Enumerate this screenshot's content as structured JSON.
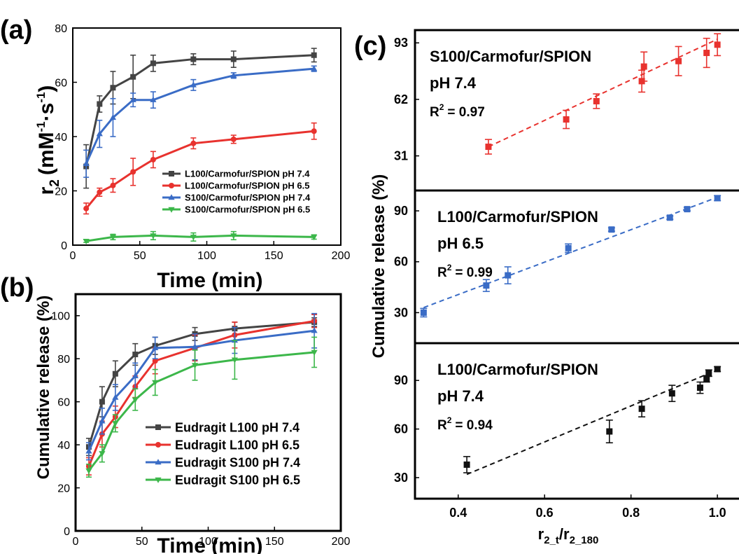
{
  "figure": {
    "panel_labels": [
      "(a)",
      "(b)",
      "(c)"
    ]
  },
  "chart_data": [
    {
      "type": "line",
      "panel": "(a)",
      "ylabel_main": "r",
      "ylabel_sub": "2",
      "ylabel_unit": "(mM",
      "ylabel_sup1": "-1",
      "ylabel_dot": "·s",
      "ylabel_sup2": "-1",
      "ylabel_close": ")",
      "xlabel": "Time (min)",
      "xlim": [
        0,
        200
      ],
      "ylim": [
        0,
        80
      ],
      "xticks": [
        "0",
        "50",
        "100",
        "150",
        "200"
      ],
      "yticks": [
        "0",
        "20",
        "40",
        "60",
        "80"
      ],
      "legend_position": "bottom-right",
      "series": [
        {
          "name": "L100/Carmofur/SPION pH 7.4",
          "color": "#444444",
          "marker": "square",
          "x": [
            10,
            20,
            30,
            45,
            60,
            90,
            120,
            180
          ],
          "y": [
            29,
            52,
            58,
            62,
            67,
            68.5,
            68.5,
            70
          ],
          "err": [
            8,
            3,
            6,
            8,
            3,
            2,
            3,
            2.5
          ]
        },
        {
          "name": "L100/Carmofur/SPION pH 6.5",
          "color": "#e8322e",
          "marker": "circle",
          "x": [
            10,
            20,
            30,
            45,
            60,
            90,
            120,
            180
          ],
          "y": [
            13.5,
            19.5,
            22,
            27,
            31.5,
            37.5,
            39,
            42
          ],
          "err": [
            2,
            1.5,
            2.5,
            5,
            3,
            2,
            1.5,
            3
          ]
        },
        {
          "name": "S100/Carmofur/SPION pH 7.4",
          "color": "#3a6cc6",
          "marker": "triangle-up",
          "x": [
            10,
            20,
            30,
            45,
            60,
            90,
            120,
            180
          ],
          "y": [
            30,
            41,
            47,
            53.5,
            53.5,
            59,
            62.5,
            65
          ],
          "err": [
            5,
            5,
            7,
            2.5,
            3,
            2,
            1,
            1
          ]
        },
        {
          "name": "S100/Carmofur/SPION pH 6.5",
          "color": "#3cb74a",
          "marker": "triangle-down",
          "x": [
            10,
            30,
            60,
            90,
            120,
            180
          ],
          "y": [
            1.5,
            3,
            3.5,
            3,
            3.5,
            3
          ],
          "err": [
            0.5,
            1,
            1.5,
            1.5,
            1.5,
            0.8
          ]
        }
      ]
    },
    {
      "type": "line",
      "panel": "(b)",
      "ylabel": "Cumulative release (%)",
      "xlabel": "Time (min)",
      "xlim": [
        0,
        200
      ],
      "ylim": [
        0,
        110
      ],
      "xticks": [
        "0",
        "50",
        "100",
        "150",
        "200"
      ],
      "yticks": [
        "0",
        "20",
        "40",
        "60",
        "80",
        "100"
      ],
      "legend_position": "bottom-right",
      "series": [
        {
          "name": "Eudragit L100 pH 7.4",
          "color": "#444444",
          "marker": "square",
          "x": [
            10,
            20,
            30,
            45,
            60,
            90,
            120,
            180
          ],
          "y": [
            39,
            60,
            73,
            82,
            86,
            91.5,
            94,
            97
          ],
          "err": [
            4,
            7,
            6,
            5,
            4,
            3,
            3,
            2
          ]
        },
        {
          "name": "Eudragit L100 pH 6.5",
          "color": "#e8322e",
          "marker": "circle",
          "x": [
            10,
            20,
            30,
            45,
            60,
            90,
            120,
            180
          ],
          "y": [
            30,
            45,
            53,
            67,
            79,
            85,
            91,
            97.5
          ],
          "err": [
            4,
            6,
            5,
            5,
            6,
            6,
            6,
            3
          ]
        },
        {
          "name": "Eudragit S100 pH 7.4",
          "color": "#3a6cc6",
          "marker": "triangle-up",
          "x": [
            10,
            20,
            30,
            45,
            60,
            90,
            120,
            180
          ],
          "y": [
            37,
            51,
            62,
            72,
            85,
            85.5,
            88.5,
            93
          ],
          "err": [
            4,
            6,
            6,
            6,
            5,
            6,
            6,
            8
          ]
        },
        {
          "name": "Eudragit S100 pH 6.5",
          "color": "#3cb74a",
          "marker": "triangle-down",
          "x": [
            10,
            20,
            30,
            45,
            60,
            90,
            120,
            180
          ],
          "y": [
            28,
            36,
            50,
            61,
            69,
            77,
            79.5,
            83
          ],
          "err": [
            3,
            4,
            4,
            5,
            6,
            7,
            9,
            7
          ]
        }
      ]
    },
    {
      "type": "scatter",
      "panel": "(c)",
      "ylabel": "Cumulative release (%)",
      "xlabel_main": "r",
      "xlabel_sub1": "2_t",
      "xlabel_slash": "/r",
      "xlabel_sub2": "2_180",
      "xlim": [
        0.3,
        1.05
      ],
      "xticks": [
        "0.4",
        "0.6",
        "0.8",
        "1.0"
      ],
      "subplots": [
        {
          "label_line1": "S100/Carmofur/SPION",
          "label_line2": "pH 7.4",
          "r2_prefix": "R",
          "r2_sup": "2",
          "r2_value": "= 0.97",
          "color": "#e8322e",
          "ylim": [
            12,
            100
          ],
          "yticks": [
            "31",
            "62",
            "93"
          ],
          "x": [
            0.47,
            0.65,
            0.72,
            0.825,
            0.83,
            0.91,
            0.975,
            1.0
          ],
          "y": [
            36,
            51,
            61,
            72,
            80,
            83,
            87.5,
            92
          ],
          "err": [
            4,
            5,
            4,
            6,
            8,
            8,
            8,
            6
          ],
          "fit": [
            [
              0.47,
              36
            ],
            [
              1.0,
              95
            ]
          ]
        },
        {
          "label_line1": "L100/Carmofur/SPION",
          "label_line2": "pH 6.5",
          "r2_prefix": "R",
          "r2_sup": "2",
          "r2_value": "= 0.99",
          "color": "#3a6cc6",
          "ylim": [
            12,
            102
          ],
          "yticks": [
            "30",
            "60",
            "90"
          ],
          "x": [
            0.32,
            0.465,
            0.515,
            0.655,
            0.755,
            0.89,
            0.93,
            1.0
          ],
          "y": [
            30,
            46,
            52,
            68,
            79,
            86,
            91,
            97.5
          ],
          "err": [
            2.5,
            3.5,
            5,
            2.5,
            1,
            1,
            1,
            1.5
          ],
          "fit": [
            [
              0.32,
              33
            ],
            [
              1.0,
              98
            ]
          ]
        },
        {
          "label_line1": "L100/Carmofur/SPION",
          "label_line2": "pH 7.4",
          "r2_prefix": "R",
          "r2_sup": "2",
          "r2_value": "= 0.94",
          "color": "#111111",
          "ylim": [
            17,
            113
          ],
          "yticks": [
            "30",
            "60",
            "90"
          ],
          "x": [
            0.42,
            0.75,
            0.825,
            0.895,
            0.96,
            0.975,
            0.98,
            1.0
          ],
          "y": [
            38,
            58.5,
            72.5,
            82,
            85.5,
            91,
            94.5,
            97
          ],
          "err": [
            5,
            7,
            5,
            5,
            3.5,
            2,
            2,
            1.5
          ],
          "fit": [
            [
              0.42,
              32
            ],
            [
              1.0,
              96.5
            ]
          ]
        }
      ]
    }
  ]
}
